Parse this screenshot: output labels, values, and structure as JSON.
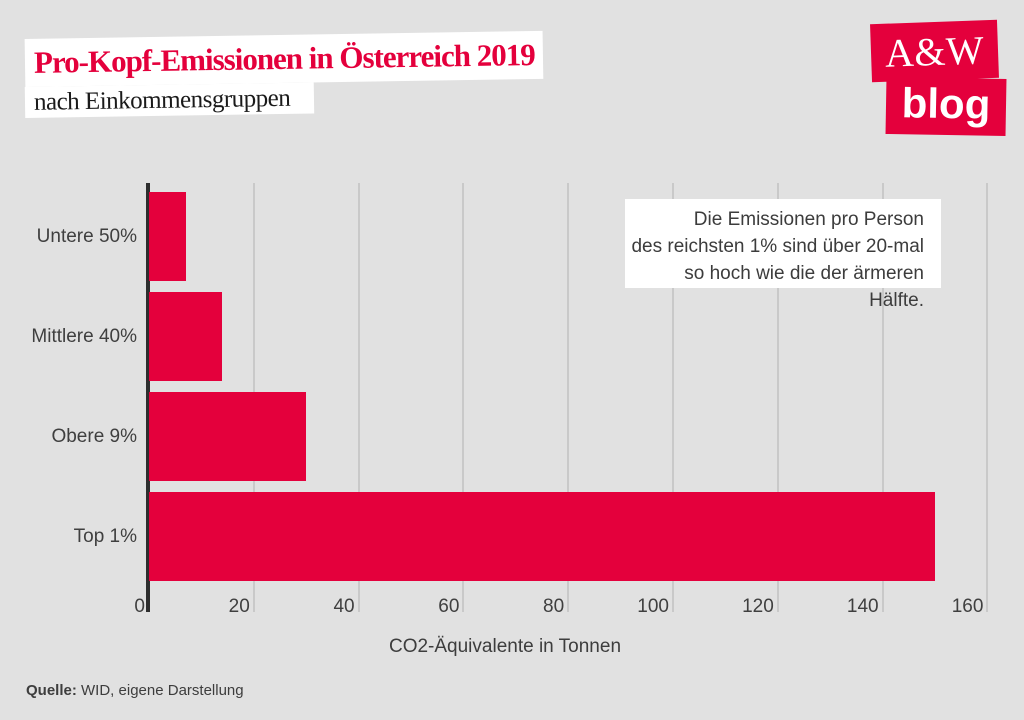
{
  "header": {
    "title": "Pro-Kopf-Emissionen in Österreich 2019",
    "subtitle": "nach Einkommensgruppen"
  },
  "logo": {
    "line1": "A&W",
    "line2": "blog"
  },
  "annotation": {
    "lines": [
      "Die Emissionen pro Person",
      "des reichsten 1% sind über 20-mal",
      "so hoch wie die der ärmeren Hälfte."
    ]
  },
  "chart_data": {
    "type": "bar",
    "orientation": "horizontal",
    "title": "Pro-Kopf-Emissionen in Österreich 2019",
    "subtitle": "nach Einkommensgruppen",
    "categories": [
      "Untere 50%",
      "Mittlere 40%",
      "Obere 9%",
      "Top 1%"
    ],
    "values": [
      7,
      14,
      30,
      150
    ],
    "xlabel": "CO2-Äquivalente in Tonnen",
    "ylabel": "",
    "xlim": [
      0,
      163
    ],
    "xticks": [
      0,
      20,
      40,
      60,
      80,
      100,
      120,
      140,
      160
    ],
    "grid": true,
    "legend": false
  },
  "source": {
    "label": "Quelle:",
    "text": " WID, eigene Darstellung"
  },
  "colors": {
    "background": "#e1e1e1",
    "bar": "#e4003c",
    "brand_red": "#e4003c",
    "title_red": "#e4003c",
    "axis": "#2d2d2d",
    "gridline": "#c9c9c9",
    "text_dark": "#3f3f3f",
    "box_white": "#ffffff"
  }
}
